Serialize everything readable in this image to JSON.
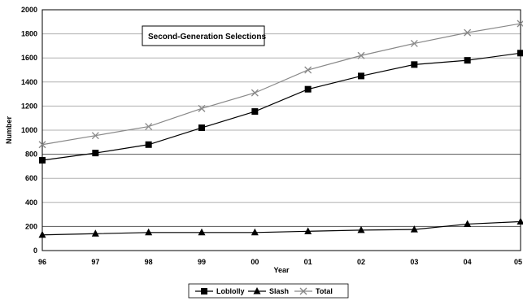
{
  "chart_data": {
    "type": "line",
    "annotation": "Second-Generation Selections",
    "xlabel": "Year",
    "ylabel": "Number",
    "categories": [
      "96",
      "97",
      "98",
      "99",
      "00",
      "01",
      "02",
      "03",
      "04",
      "05"
    ],
    "ylim": [
      0,
      2000
    ],
    "yticks": [
      0,
      200,
      400,
      600,
      800,
      1000,
      1200,
      1400,
      1600,
      1800,
      2000
    ],
    "grid": true,
    "legend_position": "bottom",
    "series": [
      {
        "name": "Loblolly",
        "marker": "square",
        "color": "#000000",
        "values": [
          750,
          810,
          880,
          1020,
          1155,
          1340,
          1450,
          1545,
          1580,
          1640
        ]
      },
      {
        "name": "Slash",
        "marker": "triangle",
        "color": "#000000",
        "values": [
          130,
          140,
          150,
          150,
          150,
          160,
          170,
          175,
          220,
          240
        ]
      },
      {
        "name": "Total",
        "marker": "x",
        "color": "#888888",
        "values": [
          880,
          955,
          1030,
          1180,
          1310,
          1500,
          1620,
          1720,
          1810,
          1885
        ]
      }
    ]
  }
}
